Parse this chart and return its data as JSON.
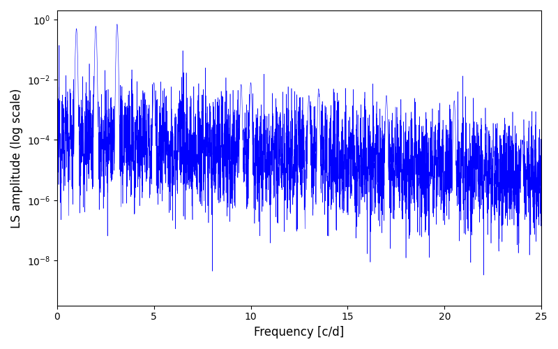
{
  "xlabel": "Frequency [c/d]",
  "ylabel": "LS amplitude (log scale)",
  "line_color": "blue",
  "xlim": [
    0,
    25
  ],
  "ylim_log": [
    -9.5,
    0.3
  ],
  "xticks": [
    0,
    5,
    10,
    15,
    20,
    25
  ],
  "ytick_powers": [
    0,
    -2,
    -4,
    -6,
    -8
  ],
  "figsize": [
    8.0,
    5.0
  ],
  "dpi": 100,
  "seed": 12345,
  "n_points": 5000,
  "background_color": "#ffffff",
  "linewidth": 0.4,
  "peak_freqs": [
    1.0,
    2.0,
    3.1,
    5.0,
    9.5,
    10.0,
    13.0,
    13.5,
    17.0,
    20.5,
    24.0
  ],
  "peak_heights": [
    0.5,
    0.6,
    0.7,
    0.008,
    0.007,
    0.008,
    0.003,
    0.005,
    0.003,
    0.002,
    0.0001
  ]
}
